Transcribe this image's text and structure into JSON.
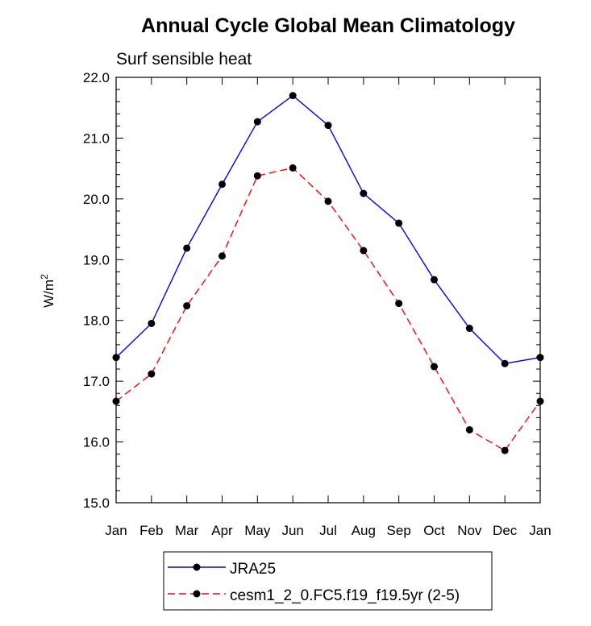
{
  "chart_data": {
    "type": "line",
    "title": "Annual Cycle Global Mean Climatology",
    "subtitle": "Surf sensible heat",
    "ylabel": "W/m",
    "ylabel_sup": "2",
    "categories": [
      "Jan",
      "Feb",
      "Mar",
      "Apr",
      "May",
      "Jun",
      "Jul",
      "Aug",
      "Sep",
      "Oct",
      "Nov",
      "Dec",
      "Jan"
    ],
    "ylim": [
      15.0,
      22.0
    ],
    "yticks": [
      "15.0",
      "16.0",
      "17.0",
      "18.0",
      "19.0",
      "20.0",
      "21.0",
      "22.0"
    ],
    "grid": false,
    "legend_position": "bottom",
    "series": [
      {
        "name": "JRA25",
        "color": "#0000ff",
        "line_style": "solid",
        "values": [
          17.39,
          17.95,
          19.19,
          20.24,
          21.27,
          21.7,
          21.21,
          20.09,
          19.6,
          18.67,
          17.87,
          17.29,
          17.39
        ]
      },
      {
        "name": "cesm1_2_0.FC5.f19_f19.5yr (2-5)",
        "color": "#ff0000",
        "line_style": "dashed",
        "values": [
          16.67,
          17.12,
          18.24,
          19.06,
          20.38,
          20.51,
          19.96,
          19.15,
          18.28,
          17.24,
          16.2,
          15.86,
          16.67
        ]
      }
    ]
  }
}
